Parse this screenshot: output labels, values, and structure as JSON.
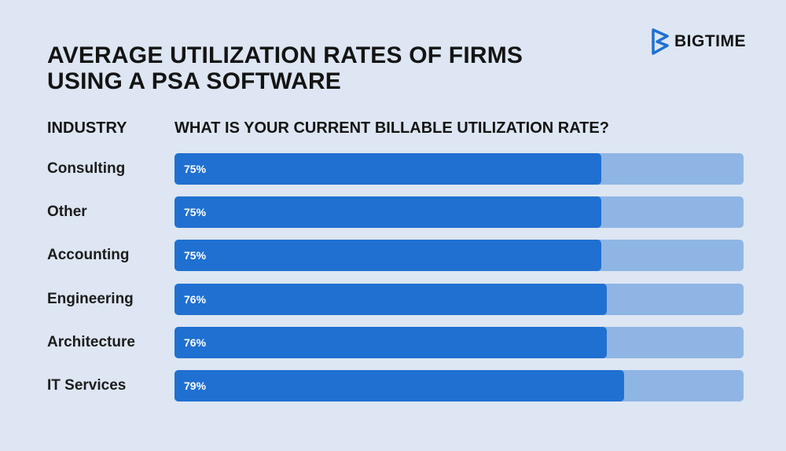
{
  "title_line1": "AVERAGE UTILIZATION RATES OF FIRMS",
  "title_line2": "USING A PSA SOFTWARE",
  "brand": {
    "name": "BIGTIME",
    "icon": "bigtime-logo-icon",
    "color": "#1f70d1"
  },
  "columns": {
    "industry": "INDUSTRY",
    "question": "WHAT IS YOUR CURRENT BILLABLE UTILIZATION RATE?"
  },
  "colors": {
    "fill": "#1f70d1",
    "track": "#8fb5e5",
    "background": "#dde6f2"
  },
  "chart_data": {
    "type": "bar",
    "orientation": "horizontal",
    "categories": [
      "Consulting",
      "Other",
      "Accounting",
      "Engineering",
      "Architecture",
      "IT Services"
    ],
    "values": [
      75,
      75,
      75,
      76,
      76,
      79
    ],
    "value_labels": [
      "75%",
      "75%",
      "75%",
      "76%",
      "76%",
      "79%"
    ],
    "xlim": [
      0,
      100
    ],
    "title": "AVERAGE UTILIZATION RATES OF FIRMS USING A PSA SOFTWARE",
    "xlabel": "WHAT IS YOUR CURRENT BILLABLE UTILIZATION RATE?",
    "ylabel": "INDUSTRY",
    "grid": false
  }
}
